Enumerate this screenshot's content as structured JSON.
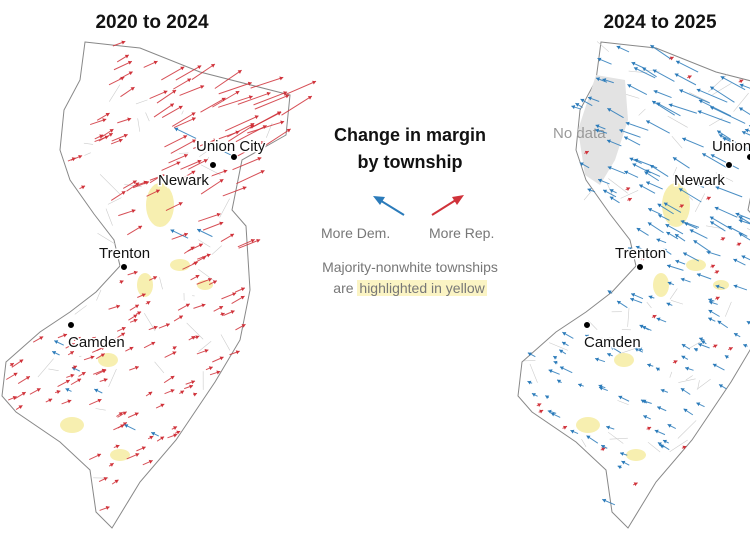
{
  "maps": [
    {
      "title": "2020 to 2024",
      "cities": [
        "Union City",
        "Newark",
        "Trenton",
        "Camden"
      ]
    },
    {
      "title": "2024 to 2025",
      "no_data": "No data",
      "cities": [
        "Union City",
        "Newark",
        "Trenton",
        "Camden"
      ]
    }
  ],
  "legend": {
    "title_lines": [
      "Change in margin",
      "by township"
    ],
    "dem": "More Dem.",
    "rep": "More Rep.",
    "note": [
      "Majority-nonwhite townships",
      "are ",
      "highlighted in yellow"
    ]
  }
}
